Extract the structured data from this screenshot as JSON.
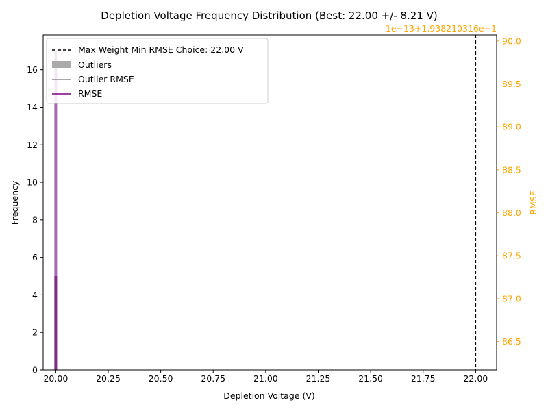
{
  "chart_data": {
    "type": "bar",
    "title": "Depletion Voltage Frequency Distribution (Best: 22.00 +/- 8.21 V)",
    "xlabel": "Depletion Voltage (V)",
    "ylabel": "Frequency",
    "y2label": "RMSE",
    "y2_offset_text": "1e−13+1.938210316e−1",
    "xlim": [
      19.94,
      22.1
    ],
    "ylim": [
      0,
      17.85
    ],
    "y2lim": [
      86.17,
      90.07
    ],
    "x_ticks": [
      "20.00",
      "20.25",
      "20.50",
      "20.75",
      "21.00",
      "21.25",
      "21.50",
      "21.75",
      "22.00"
    ],
    "y_ticks": [
      "0",
      "2",
      "4",
      "6",
      "8",
      "10",
      "12",
      "14",
      "16"
    ],
    "y2_ticks": [
      "86.5",
      "87.0",
      "87.5",
      "88.0",
      "88.5",
      "89.0",
      "89.5",
      "90.0"
    ],
    "bars": [
      {
        "series": "RMSE",
        "x": 20.0,
        "value": 17
      },
      {
        "series": "Outliers",
        "x": 20.0,
        "value": 5
      }
    ],
    "vline": {
      "x": 22.0,
      "name": "Max Weight Min RMSE Choice: 22.00 V"
    },
    "series": [
      {
        "name": "Max Weight Min RMSE Choice: 22.00 V",
        "style": "dashed-line",
        "color": "#000000"
      },
      {
        "name": "Outliers",
        "style": "patch",
        "color": "#aaaaaa"
      },
      {
        "name": "Outlier RMSE",
        "style": "line",
        "color": "#8c8c8c"
      },
      {
        "name": "RMSE",
        "style": "line",
        "color": "#800080"
      }
    ],
    "legend_position": "top-left",
    "colors": {
      "rmse_bar": "#9b4aa6",
      "outlier_bar": "#7a2a80",
      "right_axis": "#ffa500",
      "vline": "#000000"
    }
  }
}
